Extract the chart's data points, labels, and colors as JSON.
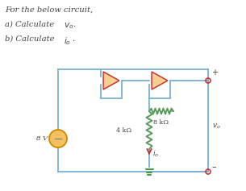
{
  "wire_color": "#7ab0d4",
  "resistor_color": "#5a9a5a",
  "opamp_fill": "#f5d090",
  "opamp_edge": "#cc3333",
  "source_fill": "#f5c060",
  "source_edge": "#cc8800",
  "terminal_color": "#cc3333",
  "bg_color": "#ffffff",
  "text_color": "#444444",
  "font_size": 7.2,
  "title": "For the below circuit,",
  "line_a": "a) Calculate ",
  "line_b": "b) Calculate "
}
